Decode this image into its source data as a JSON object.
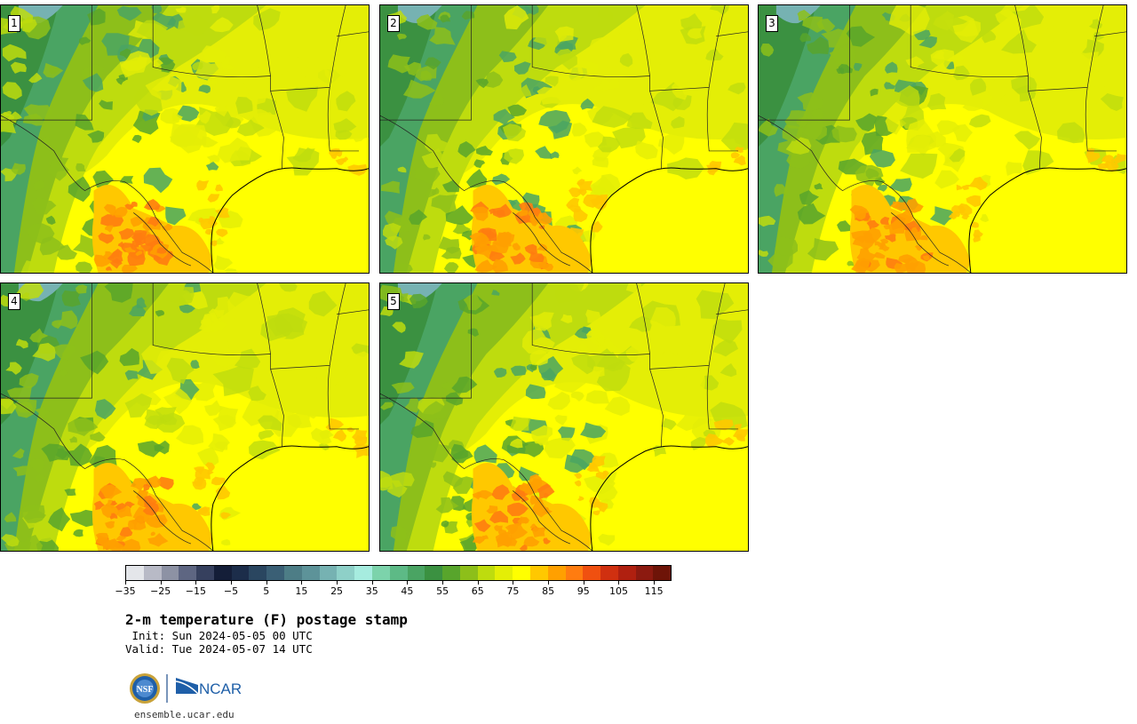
{
  "panels": [
    {
      "label": "1",
      "variant": 0
    },
    {
      "label": "2",
      "variant": 1
    },
    {
      "label": "3",
      "variant": 2
    },
    {
      "label": "4",
      "variant": 3
    },
    {
      "label": "5",
      "variant": 4
    }
  ],
  "colorbar": {
    "colors": [
      "#e4e6ea",
      "#b8bac6",
      "#8d92a4",
      "#5e6682",
      "#36405e",
      "#141e38",
      "#1c2d4a",
      "#2a4660",
      "#3a5f75",
      "#4d7d86",
      "#5d9399",
      "#76b2b2",
      "#8ed0c8",
      "#a6ecdf",
      "#7cd3ab",
      "#5dba86",
      "#4aa463",
      "#3b9141",
      "#58a52c",
      "#8dbf1a",
      "#bedc0e",
      "#e4ee06",
      "#ffff00",
      "#ffc800",
      "#ffa000",
      "#ff7c10",
      "#f05010",
      "#d03010",
      "#b02010",
      "#8c1a10",
      "#6e1408"
    ],
    "ticks": [
      "−35",
      "−25",
      "−15",
      "−5",
      "5",
      "15",
      "25",
      "35",
      "45",
      "55",
      "65",
      "75",
      "85",
      "95",
      "105",
      "115"
    ]
  },
  "title": "2-m temperature (F) postage stamp",
  "init_line": " Init: Sun 2024-05-05 00 UTC",
  "valid_line": "Valid: Tue 2024-05-07 14 UTC",
  "logos": {
    "nsf": "NSF",
    "ncar": "NCAR"
  },
  "url": "ensemble.ucar.edu"
}
